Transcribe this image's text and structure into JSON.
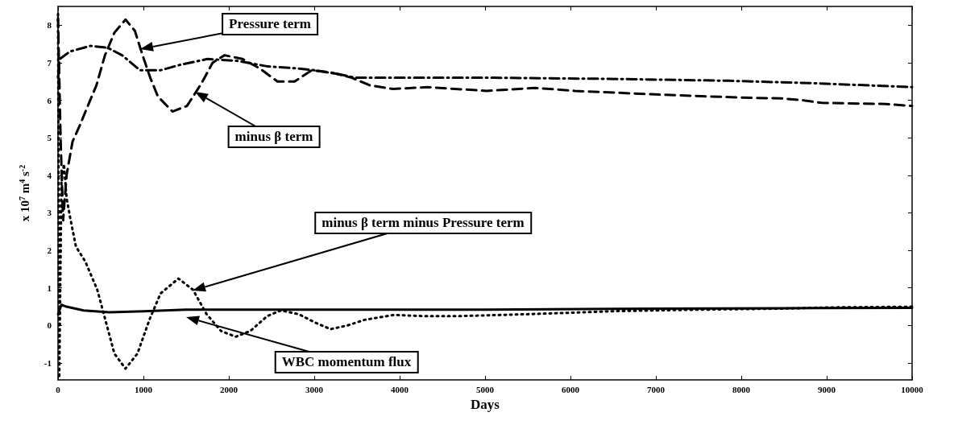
{
  "chart_data": {
    "type": "line",
    "xlabel": "Days",
    "ylabel": "x 10$^{7}$ m$^{4}$ s$^{-2}$",
    "xlim": [
      0,
      10000
    ],
    "ylim": [
      -1.45,
      8.5
    ],
    "xticks": [
      0,
      1000,
      2000,
      3000,
      4000,
      5000,
      6000,
      7000,
      8000,
      9000,
      10000
    ],
    "yticks": [
      -1,
      0,
      1,
      2,
      3,
      4,
      5,
      6,
      7,
      8
    ],
    "marker": "none",
    "series": [
      {
        "color": "#000000",
        "line_style": "dashed",
        "x": [
          0,
          30,
          60,
          100,
          170,
          250,
          340,
          450,
          550,
          660,
          790,
          900,
          990,
          1080,
          1170,
          1340,
          1510,
          1680,
          1810,
          1950,
          2160,
          2360,
          2570,
          2770,
          2970,
          3180,
          3440,
          3650,
          3920,
          4330,
          5020,
          5590,
          6050,
          6550,
          7050,
          8020,
          8470,
          8720,
          8940,
          9690,
          10000
        ],
        "values": [
          8.2,
          5.0,
          2.8,
          4.0,
          4.9,
          5.3,
          5.8,
          6.4,
          7.2,
          7.8,
          8.15,
          7.85,
          7.2,
          6.6,
          6.1,
          5.7,
          5.85,
          6.45,
          7.0,
          7.2,
          7.1,
          6.85,
          6.5,
          6.5,
          6.8,
          6.75,
          6.6,
          6.4,
          6.3,
          6.35,
          6.25,
          6.33,
          6.25,
          6.2,
          6.15,
          6.07,
          6.05,
          6.0,
          5.93,
          5.9,
          5.85
        ]
      },
      {
        "color": "#000000",
        "line_style": "dashdot",
        "x": [
          0,
          20,
          140,
          380,
          580,
          750,
          960,
          1200,
          1440,
          1750,
          2100,
          2460,
          2800,
          3000,
          3280,
          3480,
          3960,
          5100,
          6450,
          7850,
          8900,
          10000
        ],
        "values": [
          6.6,
          7.1,
          7.3,
          7.45,
          7.4,
          7.2,
          6.8,
          6.8,
          6.95,
          7.1,
          7.05,
          6.9,
          6.85,
          6.8,
          6.7,
          6.6,
          6.6,
          6.6,
          6.57,
          6.52,
          6.45,
          6.35
        ]
      },
      {
        "color": "#000000",
        "line_style": "dotted",
        "x": [
          0,
          15,
          40,
          70,
          100,
          140,
          210,
          320,
          460,
          560,
          660,
          790,
          930,
          1070,
          1200,
          1410,
          1580,
          1740,
          1910,
          2080,
          2250,
          2450,
          2610,
          2820,
          2990,
          3190,
          3390,
          3590,
          3930,
          4260,
          4710,
          5500,
          6500,
          7500,
          8500,
          9000,
          10000
        ],
        "values": [
          8.3,
          -1.4,
          3.8,
          4.3,
          3.4,
          2.9,
          2.1,
          1.7,
          0.95,
          0.1,
          -0.75,
          -1.15,
          -0.75,
          0.15,
          0.85,
          1.25,
          0.95,
          0.3,
          -0.15,
          -0.3,
          -0.15,
          0.25,
          0.4,
          0.3,
          0.1,
          -0.1,
          0.0,
          0.15,
          0.28,
          0.25,
          0.25,
          0.3,
          0.38,
          0.42,
          0.45,
          0.48,
          0.5
        ]
      },
      {
        "color": "#000000",
        "line_style": "solid",
        "x": [
          0,
          40,
          100,
          300,
          600,
          1000,
          1500,
          3000,
          5000,
          7000,
          8500,
          10000
        ],
        "values": [
          0.3,
          0.55,
          0.5,
          0.4,
          0.35,
          0.38,
          0.42,
          0.42,
          0.42,
          0.45,
          0.46,
          0.47
        ]
      }
    ],
    "annotations": [
      "Pressure term",
      "minus β term",
      "minus β term minus Pressure term",
      "WBC momentum flux"
    ]
  }
}
